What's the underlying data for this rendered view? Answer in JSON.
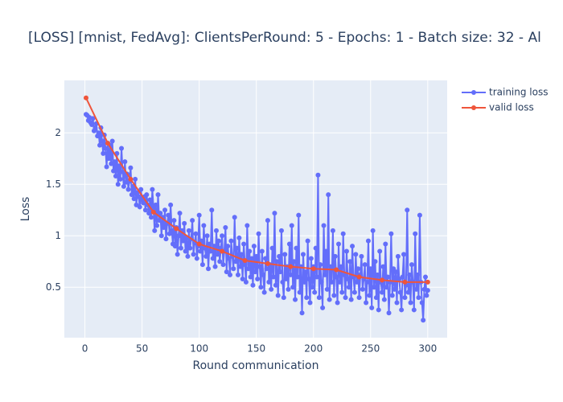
{
  "chart_data": {
    "type": "line",
    "title": "[LOSS] [mnist, FedAvg]: ClientsPerRound: 5 - Epochs: 1 - Batch size: 32 - Al",
    "x_label": "Round communication",
    "y_label": "Loss",
    "xlim": [
      -18,
      317
    ],
    "ylim": [
      0.01,
      2.51
    ],
    "xticks": [
      0,
      50,
      100,
      150,
      200,
      250,
      300
    ],
    "yticks": [
      0.5,
      1,
      1.5,
      2
    ],
    "grid": true,
    "legend": "top-right",
    "series": [
      {
        "name": "training loss",
        "color": "#636efa",
        "x": [
          1,
          2,
          3,
          4,
          5,
          6,
          7,
          8,
          9,
          10,
          11,
          12,
          13,
          14,
          15,
          16,
          17,
          18,
          19,
          20,
          21,
          22,
          23,
          24,
          25,
          26,
          27,
          28,
          29,
          30,
          31,
          32,
          33,
          34,
          35,
          36,
          37,
          38,
          39,
          40,
          41,
          42,
          43,
          44,
          45,
          46,
          47,
          48,
          49,
          50,
          51,
          52,
          53,
          54,
          55,
          56,
          57,
          58,
          59,
          60,
          61,
          62,
          63,
          64,
          65,
          66,
          67,
          68,
          69,
          70,
          71,
          72,
          73,
          74,
          75,
          76,
          77,
          78,
          79,
          80,
          81,
          82,
          83,
          84,
          85,
          86,
          87,
          88,
          89,
          90,
          91,
          92,
          93,
          94,
          95,
          96,
          97,
          98,
          99,
          100,
          101,
          102,
          103,
          104,
          105,
          106,
          107,
          108,
          109,
          110,
          111,
          112,
          113,
          114,
          115,
          116,
          117,
          118,
          119,
          120,
          121,
          122,
          123,
          124,
          125,
          126,
          127,
          128,
          129,
          130,
          131,
          132,
          133,
          134,
          135,
          136,
          137,
          138,
          139,
          140,
          141,
          142,
          143,
          144,
          145,
          146,
          147,
          148,
          149,
          150,
          151,
          152,
          153,
          154,
          155,
          156,
          157,
          158,
          159,
          160,
          161,
          162,
          163,
          164,
          165,
          166,
          167,
          168,
          169,
          170,
          171,
          172,
          173,
          174,
          175,
          176,
          177,
          178,
          179,
          180,
          181,
          182,
          183,
          184,
          185,
          186,
          187,
          188,
          189,
          190,
          191,
          192,
          193,
          194,
          195,
          196,
          197,
          198,
          199,
          200,
          201,
          202,
          203,
          204,
          205,
          206,
          207,
          208,
          209,
          210,
          211,
          212,
          213,
          214,
          215,
          216,
          217,
          218,
          219,
          220,
          221,
          222,
          223,
          224,
          225,
          226,
          227,
          228,
          229,
          230,
          231,
          232,
          233,
          234,
          235,
          236,
          237,
          238,
          239,
          240,
          241,
          242,
          243,
          244,
          245,
          246,
          247,
          248,
          249,
          250,
          251,
          252,
          253,
          254,
          255,
          256,
          257,
          258,
          259,
          260,
          261,
          262,
          263,
          264,
          265,
          266,
          267,
          268,
          269,
          270,
          271,
          272,
          273,
          274,
          275,
          276,
          277,
          278,
          279,
          280,
          281,
          282,
          283,
          284,
          285,
          286,
          287,
          288,
          289,
          290,
          291,
          292,
          293,
          294,
          295,
          296,
          297,
          298,
          299,
          300
        ],
        "values": [
          2.18,
          2.17,
          2.12,
          2.15,
          2.1,
          2.08,
          2.14,
          2.02,
          2.05,
          2.09,
          1.97,
          2.0,
          1.88,
          2.05,
          1.92,
          1.8,
          1.98,
          1.85,
          1.67,
          1.9,
          1.75,
          1.88,
          1.7,
          1.92,
          1.63,
          1.72,
          1.58,
          1.8,
          1.5,
          1.68,
          1.55,
          1.85,
          1.62,
          1.48,
          1.72,
          1.52,
          1.6,
          1.45,
          1.53,
          1.66,
          1.4,
          1.48,
          1.36,
          1.55,
          1.3,
          1.42,
          1.38,
          1.28,
          1.45,
          1.35,
          1.32,
          1.38,
          1.25,
          1.4,
          1.3,
          1.22,
          1.35,
          1.18,
          1.45,
          1.27,
          1.05,
          1.3,
          1.1,
          1.4,
          1.15,
          1.22,
          1.0,
          1.18,
          1.08,
          1.25,
          0.97,
          1.12,
          1.2,
          1.02,
          1.3,
          1.05,
          0.92,
          1.15,
          0.9,
          1.08,
          0.82,
          1.0,
          1.22,
          0.88,
          1.05,
          0.95,
          1.12,
          0.85,
          0.98,
          0.8,
          1.05,
          0.88,
          0.97,
          1.15,
          0.82,
          0.93,
          1.02,
          0.78,
          0.9,
          1.2,
          0.85,
          0.95,
          0.72,
          1.1,
          0.88,
          0.8,
          1.0,
          0.68,
          0.92,
          0.85,
          1.25,
          0.78,
          0.9,
          0.7,
          1.05,
          0.82,
          0.95,
          0.75,
          0.88,
          1.0,
          0.72,
          0.85,
          1.08,
          0.65,
          0.9,
          0.78,
          0.62,
          0.95,
          0.8,
          0.68,
          1.18,
          0.75,
          0.88,
          0.62,
          0.98,
          0.7,
          0.82,
          0.58,
          0.92,
          0.72,
          0.55,
          1.1,
          0.68,
          0.85,
          0.6,
          0.78,
          0.52,
          0.9,
          0.65,
          0.8,
          0.58,
          1.02,
          0.7,
          0.5,
          0.85,
          0.62,
          0.45,
          0.78,
          0.68,
          1.15,
          0.55,
          0.72,
          0.48,
          0.88,
          0.6,
          1.22,
          0.52,
          0.75,
          0.42,
          0.8,
          0.65,
          1.05,
          0.55,
          0.4,
          0.82,
          0.58,
          0.7,
          0.48,
          0.92,
          0.62,
          1.1,
          0.5,
          0.75,
          0.38,
          0.88,
          0.6,
          1.2,
          0.45,
          0.7,
          0.25,
          0.82,
          0.55,
          0.65,
          0.4,
          0.95,
          0.58,
          0.35,
          0.78,
          0.5,
          0.7,
          0.45,
          0.88,
          0.6,
          1.59,
          0.4,
          0.72,
          0.55,
          0.3,
          1.1,
          0.62,
          0.85,
          0.48,
          1.4,
          0.38,
          0.7,
          0.55,
          1.05,
          0.42,
          0.8,
          0.6,
          0.35,
          0.92,
          0.55,
          0.7,
          0.45,
          1.02,
          0.62,
          0.4,
          0.85,
          0.58,
          0.5,
          0.75,
          0.38,
          0.9,
          0.6,
          0.45,
          0.82,
          0.55,
          0.68,
          0.4,
          0.62,
          0.8,
          0.48,
          0.58,
          0.72,
          0.35,
          0.55,
          0.95,
          0.42,
          0.68,
          0.3,
          1.05,
          0.5,
          0.75,
          0.4,
          0.62,
          0.28,
          0.85,
          0.55,
          0.45,
          0.7,
          0.38,
          0.92,
          0.5,
          0.6,
          0.25,
          0.55,
          1.02,
          0.42,
          0.68,
          0.48,
          0.65,
          0.35,
          0.8,
          0.58,
          0.45,
          0.28,
          0.6,
          0.82,
          0.4,
          0.52,
          1.25,
          0.45,
          0.62,
          0.35,
          0.72,
          0.55,
          0.28,
          1.02,
          0.48,
          0.62,
          0.4,
          1.2,
          0.55,
          0.35,
          0.18,
          0.48,
          0.6,
          0.42,
          0.47
        ]
      },
      {
        "name": "valid loss",
        "color": "#ef553b",
        "x": [
          1,
          20,
          40,
          60,
          80,
          100,
          120,
          140,
          160,
          180,
          200,
          220,
          240,
          260,
          280,
          300
        ],
        "values": [
          2.34,
          1.9,
          1.55,
          1.23,
          1.07,
          0.92,
          0.85,
          0.76,
          0.73,
          0.7,
          0.68,
          0.67,
          0.6,
          0.57,
          0.55,
          0.55
        ]
      }
    ]
  }
}
